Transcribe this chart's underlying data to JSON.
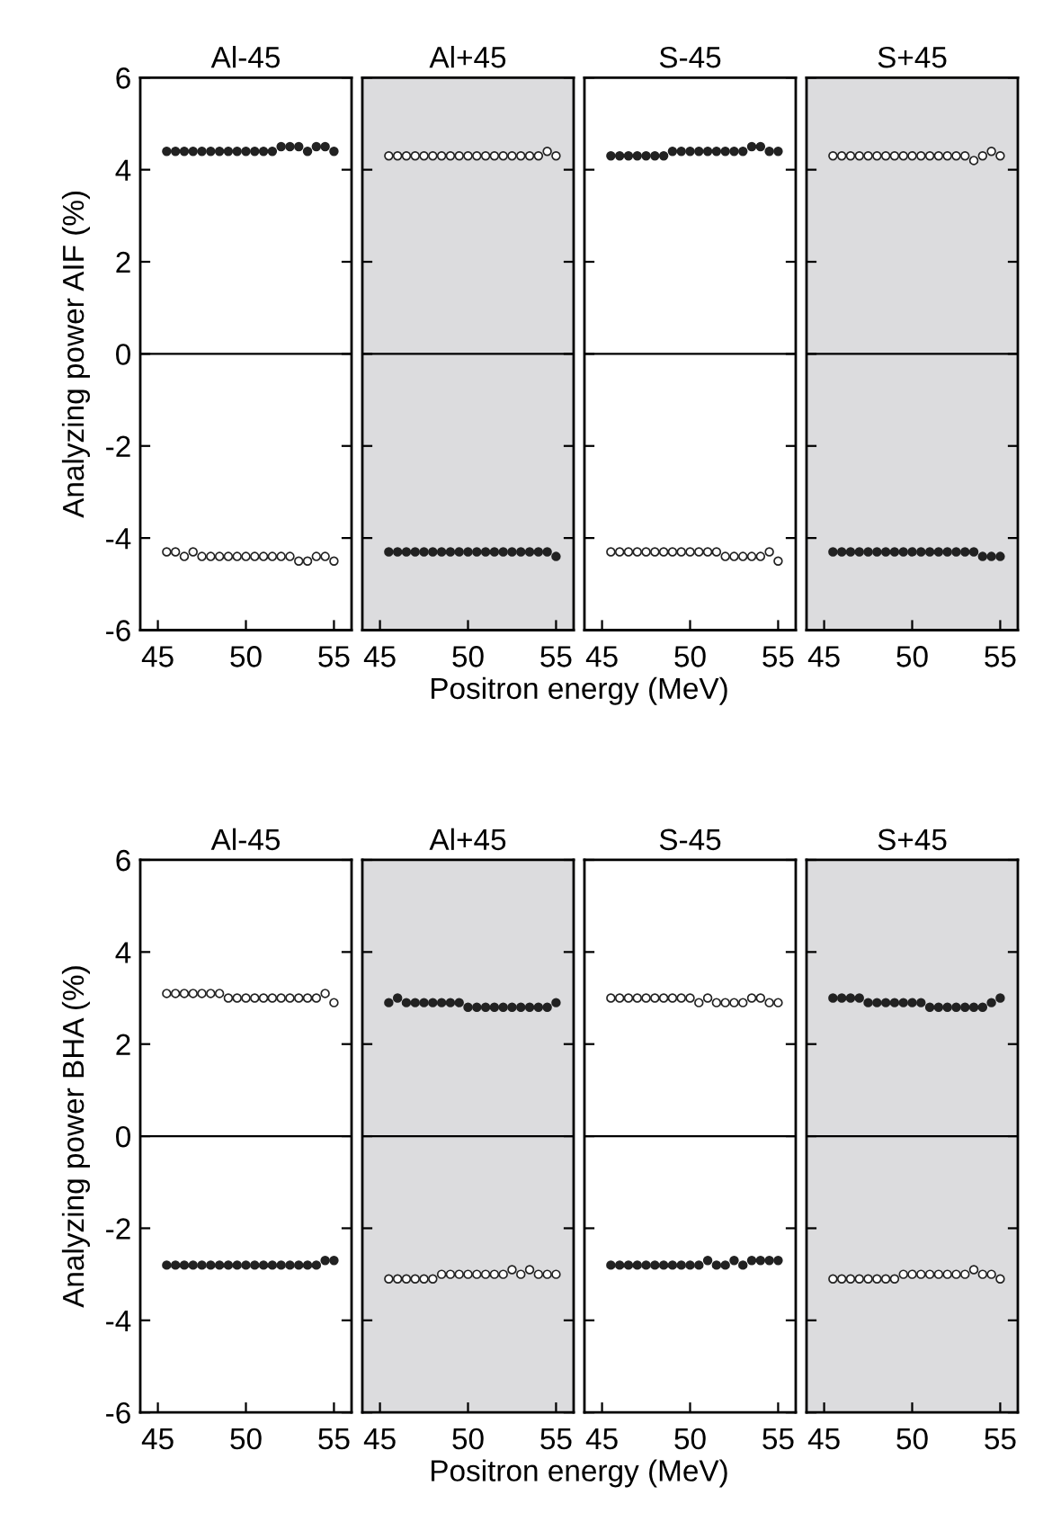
{
  "chart_data": [
    {
      "type": "scatter",
      "title": "Al-45",
      "xlim": [
        44,
        56
      ],
      "xticks": [
        45,
        50,
        55
      ],
      "ylim": [
        -6,
        6
      ],
      "yticks": [
        -6,
        -4,
        -2,
        0,
        2,
        4,
        6
      ],
      "ylabel": "Analyzing power AIF (%)",
      "marker": "circle",
      "grid": false,
      "ref_lines": [
        {
          "axis": "y",
          "value": 0,
          "color": "#000000"
        }
      ],
      "x": [
        45.5,
        46,
        46.5,
        47,
        47.5,
        48,
        48.5,
        49,
        49.5,
        50,
        50.5,
        51,
        51.5,
        52,
        52.5,
        53,
        53.5,
        54,
        54.5,
        55
      ],
      "series": [
        {
          "color": "#222222",
          "values": [
            4.4,
            4.4,
            4.4,
            4.4,
            4.4,
            4.4,
            4.4,
            4.4,
            4.4,
            4.4,
            4.4,
            4.4,
            4.4,
            4.5,
            4.5,
            4.5,
            4.4,
            4.5,
            4.5,
            4.4
          ]
        },
        {
          "color": "#ffffff",
          "values": [
            -4.3,
            -4.3,
            -4.4,
            -4.3,
            -4.4,
            -4.4,
            -4.4,
            -4.4,
            -4.4,
            -4.4,
            -4.4,
            -4.4,
            -4.4,
            -4.4,
            -4.4,
            -4.5,
            -4.5,
            -4.4,
            -4.4,
            -4.5
          ]
        }
      ]
    },
    {
      "type": "scatter",
      "title": "Al+45",
      "xlim": [
        44,
        56
      ],
      "xticks": [
        45,
        50,
        55
      ],
      "ylim": [
        -6,
        6
      ],
      "yticks": [
        -6,
        -4,
        -2,
        0,
        2,
        4,
        6
      ],
      "tick_labels": "x",
      "xlabel": "Positron energy (MeV)",
      "marker": "circle",
      "grid": false,
      "bands": [
        {
          "axis": "x",
          "from": 44,
          "to": 56,
          "color": "#dcdcde"
        }
      ],
      "ref_lines": [
        {
          "axis": "y",
          "value": 0,
          "color": "#000000"
        }
      ],
      "x": [
        45.5,
        46,
        46.5,
        47,
        47.5,
        48,
        48.5,
        49,
        49.5,
        50,
        50.5,
        51,
        51.5,
        52,
        52.5,
        53,
        53.5,
        54,
        54.5,
        55
      ],
      "series": [
        {
          "color": "#ffffff",
          "values": [
            4.3,
            4.3,
            4.3,
            4.3,
            4.3,
            4.3,
            4.3,
            4.3,
            4.3,
            4.3,
            4.3,
            4.3,
            4.3,
            4.3,
            4.3,
            4.3,
            4.3,
            4.3,
            4.4,
            4.3
          ]
        },
        {
          "color": "#222222",
          "values": [
            -4.3,
            -4.3,
            -4.3,
            -4.3,
            -4.3,
            -4.3,
            -4.3,
            -4.3,
            -4.3,
            -4.3,
            -4.3,
            -4.3,
            -4.3,
            -4.3,
            -4.3,
            -4.3,
            -4.3,
            -4.3,
            -4.3,
            -4.4
          ]
        }
      ]
    },
    {
      "type": "scatter",
      "title": "S-45",
      "xlim": [
        44,
        56
      ],
      "xticks": [
        45,
        50,
        55
      ],
      "ylim": [
        -6,
        6
      ],
      "yticks": [
        -6,
        -4,
        -2,
        0,
        2,
        4,
        6
      ],
      "tick_labels": "x",
      "marker": "circle",
      "grid": false,
      "ref_lines": [
        {
          "axis": "y",
          "value": 0,
          "color": "#000000"
        }
      ],
      "x": [
        45.5,
        46,
        46.5,
        47,
        47.5,
        48,
        48.5,
        49,
        49.5,
        50,
        50.5,
        51,
        51.5,
        52,
        52.5,
        53,
        53.5,
        54,
        54.5,
        55
      ],
      "series": [
        {
          "color": "#222222",
          "values": [
            4.3,
            4.3,
            4.3,
            4.3,
            4.3,
            4.3,
            4.3,
            4.4,
            4.4,
            4.4,
            4.4,
            4.4,
            4.4,
            4.4,
            4.4,
            4.4,
            4.5,
            4.5,
            4.4,
            4.4
          ]
        },
        {
          "color": "#ffffff",
          "values": [
            -4.3,
            -4.3,
            -4.3,
            -4.3,
            -4.3,
            -4.3,
            -4.3,
            -4.3,
            -4.3,
            -4.3,
            -4.3,
            -4.3,
            -4.3,
            -4.4,
            -4.4,
            -4.4,
            -4.4,
            -4.4,
            -4.3,
            -4.5
          ]
        }
      ]
    },
    {
      "type": "scatter",
      "title": "S+45",
      "xlim": [
        44,
        56
      ],
      "xticks": [
        45,
        50,
        55
      ],
      "ylim": [
        -6,
        6
      ],
      "yticks": [
        -6,
        -4,
        -2,
        0,
        2,
        4,
        6
      ],
      "tick_labels": "x",
      "marker": "circle",
      "grid": false,
      "bands": [
        {
          "axis": "x",
          "from": 44,
          "to": 56,
          "color": "#dcdcde"
        }
      ],
      "ref_lines": [
        {
          "axis": "y",
          "value": 0,
          "color": "#000000"
        }
      ],
      "x": [
        45.5,
        46,
        46.5,
        47,
        47.5,
        48,
        48.5,
        49,
        49.5,
        50,
        50.5,
        51,
        51.5,
        52,
        52.5,
        53,
        53.5,
        54,
        54.5,
        55
      ],
      "series": [
        {
          "color": "#ffffff",
          "values": [
            4.3,
            4.3,
            4.3,
            4.3,
            4.3,
            4.3,
            4.3,
            4.3,
            4.3,
            4.3,
            4.3,
            4.3,
            4.3,
            4.3,
            4.3,
            4.3,
            4.2,
            4.3,
            4.4,
            4.3
          ]
        },
        {
          "color": "#222222",
          "values": [
            -4.3,
            -4.3,
            -4.3,
            -4.3,
            -4.3,
            -4.3,
            -4.3,
            -4.3,
            -4.3,
            -4.3,
            -4.3,
            -4.3,
            -4.3,
            -4.3,
            -4.3,
            -4.3,
            -4.3,
            -4.4,
            -4.4,
            -4.4
          ]
        }
      ]
    },
    {
      "type": "scatter",
      "title": "Al-45",
      "xlim": [
        44,
        56
      ],
      "xticks": [
        45,
        50,
        55
      ],
      "ylim": [
        -6,
        6
      ],
      "yticks": [
        -6,
        -4,
        -2,
        0,
        2,
        4,
        6
      ],
      "ylabel": "Analyzing power BHA (%)",
      "marker": "circle",
      "grid": false,
      "ref_lines": [
        {
          "axis": "y",
          "value": 0,
          "color": "#000000"
        }
      ],
      "x": [
        45.5,
        46,
        46.5,
        47,
        47.5,
        48,
        48.5,
        49,
        49.5,
        50,
        50.5,
        51,
        51.5,
        52,
        52.5,
        53,
        53.5,
        54,
        54.5,
        55
      ],
      "series": [
        {
          "color": "#ffffff",
          "values": [
            3.1,
            3.1,
            3.1,
            3.1,
            3.1,
            3.1,
            3.1,
            3.0,
            3.0,
            3.0,
            3.0,
            3.0,
            3.0,
            3.0,
            3.0,
            3.0,
            3.0,
            3.0,
            3.1,
            2.9
          ]
        },
        {
          "color": "#222222",
          "values": [
            -2.8,
            -2.8,
            -2.8,
            -2.8,
            -2.8,
            -2.8,
            -2.8,
            -2.8,
            -2.8,
            -2.8,
            -2.8,
            -2.8,
            -2.8,
            -2.8,
            -2.8,
            -2.8,
            -2.8,
            -2.8,
            -2.7,
            -2.7
          ]
        }
      ]
    },
    {
      "type": "scatter",
      "title": "Al+45",
      "xlim": [
        44,
        56
      ],
      "xticks": [
        45,
        50,
        55
      ],
      "ylim": [
        -6,
        6
      ],
      "yticks": [
        -6,
        -4,
        -2,
        0,
        2,
        4,
        6
      ],
      "tick_labels": "x",
      "xlabel": "Positron energy (MeV)",
      "marker": "circle",
      "grid": false,
      "bands": [
        {
          "axis": "x",
          "from": 44,
          "to": 56,
          "color": "#dcdcde"
        }
      ],
      "ref_lines": [
        {
          "axis": "y",
          "value": 0,
          "color": "#000000"
        }
      ],
      "x": [
        45.5,
        46,
        46.5,
        47,
        47.5,
        48,
        48.5,
        49,
        49.5,
        50,
        50.5,
        51,
        51.5,
        52,
        52.5,
        53,
        53.5,
        54,
        54.5,
        55
      ],
      "series": [
        {
          "color": "#222222",
          "values": [
            2.9,
            3.0,
            2.9,
            2.9,
            2.9,
            2.9,
            2.9,
            2.9,
            2.9,
            2.8,
            2.8,
            2.8,
            2.8,
            2.8,
            2.8,
            2.8,
            2.8,
            2.8,
            2.8,
            2.9
          ]
        },
        {
          "color": "#ffffff",
          "values": [
            -3.1,
            -3.1,
            -3.1,
            -3.1,
            -3.1,
            -3.1,
            -3.0,
            -3.0,
            -3.0,
            -3.0,
            -3.0,
            -3.0,
            -3.0,
            -3.0,
            -2.9,
            -3.0,
            -2.9,
            -3.0,
            -3.0,
            -3.0
          ]
        }
      ]
    },
    {
      "type": "scatter",
      "title": "S-45",
      "xlim": [
        44,
        56
      ],
      "xticks": [
        45,
        50,
        55
      ],
      "ylim": [
        -6,
        6
      ],
      "yticks": [
        -6,
        -4,
        -2,
        0,
        2,
        4,
        6
      ],
      "tick_labels": "x",
      "marker": "circle",
      "grid": false,
      "ref_lines": [
        {
          "axis": "y",
          "value": 0,
          "color": "#000000"
        }
      ],
      "x": [
        45.5,
        46,
        46.5,
        47,
        47.5,
        48,
        48.5,
        49,
        49.5,
        50,
        50.5,
        51,
        51.5,
        52,
        52.5,
        53,
        53.5,
        54,
        54.5,
        55
      ],
      "series": [
        {
          "color": "#ffffff",
          "values": [
            3.0,
            3.0,
            3.0,
            3.0,
            3.0,
            3.0,
            3.0,
            3.0,
            3.0,
            3.0,
            2.9,
            3.0,
            2.9,
            2.9,
            2.9,
            2.9,
            3.0,
            3.0,
            2.9,
            2.9
          ]
        },
        {
          "color": "#222222",
          "values": [
            -2.8,
            -2.8,
            -2.8,
            -2.8,
            -2.8,
            -2.8,
            -2.8,
            -2.8,
            -2.8,
            -2.8,
            -2.8,
            -2.7,
            -2.8,
            -2.8,
            -2.7,
            -2.8,
            -2.7,
            -2.7,
            -2.7,
            -2.7
          ]
        }
      ]
    },
    {
      "type": "scatter",
      "title": "S+45",
      "xlim": [
        44,
        56
      ],
      "xticks": [
        45,
        50,
        55
      ],
      "ylim": [
        -6,
        6
      ],
      "yticks": [
        -6,
        -4,
        -2,
        0,
        2,
        4,
        6
      ],
      "tick_labels": "x",
      "marker": "circle",
      "grid": false,
      "bands": [
        {
          "axis": "x",
          "from": 44,
          "to": 56,
          "color": "#dcdcde"
        }
      ],
      "ref_lines": [
        {
          "axis": "y",
          "value": 0,
          "color": "#000000"
        }
      ],
      "x": [
        45.5,
        46,
        46.5,
        47,
        47.5,
        48,
        48.5,
        49,
        49.5,
        50,
        50.5,
        51,
        51.5,
        52,
        52.5,
        53,
        53.5,
        54,
        54.5,
        55
      ],
      "series": [
        {
          "color": "#222222",
          "values": [
            3.0,
            3.0,
            3.0,
            3.0,
            2.9,
            2.9,
            2.9,
            2.9,
            2.9,
            2.9,
            2.9,
            2.8,
            2.8,
            2.8,
            2.8,
            2.8,
            2.8,
            2.8,
            2.9,
            3.0
          ]
        },
        {
          "color": "#ffffff",
          "values": [
            -3.1,
            -3.1,
            -3.1,
            -3.1,
            -3.1,
            -3.1,
            -3.1,
            -3.1,
            -3.0,
            -3.0,
            -3.0,
            -3.0,
            -3.0,
            -3.0,
            -3.0,
            -3.0,
            -2.9,
            -3.0,
            -3.0,
            -3.1
          ]
        }
      ]
    }
  ]
}
